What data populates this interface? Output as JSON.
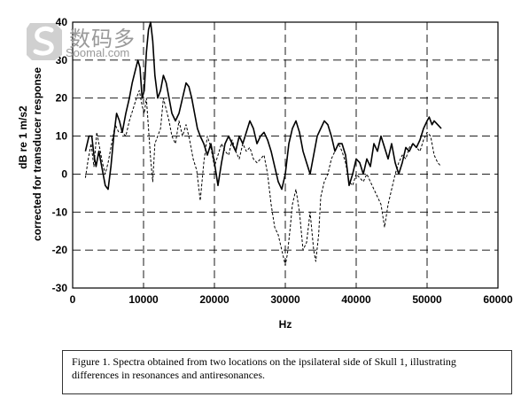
{
  "watermark": {
    "cn": "数码多",
    "en": "Soomal.com"
  },
  "caption": "Figure 1. Spectra obtained from two locations on the ipsilateral side of Skull 1, illustrating differences in resonances and antiresonances.",
  "chart_data": {
    "type": "line",
    "xlabel": "Hz",
    "ylabel_line1": "dB re 1 m/s2",
    "ylabel_line2": "corrected for transducer response",
    "xlim": [
      0,
      60000
    ],
    "ylim": [
      -30,
      40
    ],
    "xticks": [
      0,
      10000,
      20000,
      30000,
      40000,
      50000,
      60000
    ],
    "yticks": [
      -30,
      -20,
      -10,
      0,
      10,
      20,
      30,
      40
    ],
    "grid": "dashed",
    "series": [
      {
        "style": "solid",
        "points": [
          [
            1800,
            6
          ],
          [
            2300,
            10
          ],
          [
            2700,
            10
          ],
          [
            3000,
            5
          ],
          [
            3300,
            2
          ],
          [
            3700,
            6
          ],
          [
            4100,
            2
          ],
          [
            4600,
            -3
          ],
          [
            5000,
            -4
          ],
          [
            5400,
            2
          ],
          [
            5800,
            10
          ],
          [
            6200,
            16
          ],
          [
            6600,
            14
          ],
          [
            7000,
            11
          ],
          [
            7500,
            16
          ],
          [
            8000,
            20
          ],
          [
            8400,
            24
          ],
          [
            8800,
            27
          ],
          [
            9200,
            30
          ],
          [
            9500,
            28
          ],
          [
            9800,
            20
          ],
          [
            10100,
            22
          ],
          [
            10400,
            32
          ],
          [
            10700,
            38
          ],
          [
            11000,
            40
          ],
          [
            11300,
            35
          ],
          [
            11600,
            26
          ],
          [
            12000,
            20
          ],
          [
            12400,
            22
          ],
          [
            12800,
            26
          ],
          [
            13200,
            24
          ],
          [
            13600,
            20
          ],
          [
            14000,
            16
          ],
          [
            14500,
            14
          ],
          [
            15000,
            16
          ],
          [
            15500,
            20
          ],
          [
            16000,
            24
          ],
          [
            16400,
            23
          ],
          [
            16800,
            20
          ],
          [
            17200,
            16
          ],
          [
            17600,
            12
          ],
          [
            18000,
            10
          ],
          [
            18500,
            8
          ],
          [
            19000,
            5
          ],
          [
            19500,
            8
          ],
          [
            20000,
            3
          ],
          [
            20500,
            -3
          ],
          [
            21000,
            3
          ],
          [
            21500,
            8
          ],
          [
            22000,
            10
          ],
          [
            22500,
            8
          ],
          [
            23000,
            6
          ],
          [
            23500,
            10
          ],
          [
            24000,
            8
          ],
          [
            24500,
            11
          ],
          [
            25000,
            14
          ],
          [
            25500,
            12
          ],
          [
            26000,
            8
          ],
          [
            26500,
            10
          ],
          [
            27000,
            11
          ],
          [
            27500,
            9
          ],
          [
            28000,
            6
          ],
          [
            28500,
            2
          ],
          [
            29000,
            -2
          ],
          [
            29500,
            -4
          ],
          [
            30000,
            0
          ],
          [
            30500,
            8
          ],
          [
            31000,
            12
          ],
          [
            31500,
            14
          ],
          [
            32000,
            11
          ],
          [
            32500,
            6
          ],
          [
            33000,
            3
          ],
          [
            33500,
            0
          ],
          [
            34000,
            5
          ],
          [
            34500,
            10
          ],
          [
            35000,
            12
          ],
          [
            35500,
            14
          ],
          [
            36000,
            13
          ],
          [
            36500,
            10
          ],
          [
            37000,
            6
          ],
          [
            37500,
            8
          ],
          [
            38000,
            8
          ],
          [
            38500,
            5
          ],
          [
            39000,
            -3
          ],
          [
            39500,
            0
          ],
          [
            40000,
            4
          ],
          [
            40500,
            3
          ],
          [
            41000,
            0
          ],
          [
            41500,
            4
          ],
          [
            42000,
            2
          ],
          [
            42500,
            8
          ],
          [
            43000,
            6
          ],
          [
            43500,
            10
          ],
          [
            44000,
            7
          ],
          [
            44500,
            4
          ],
          [
            45000,
            8
          ],
          [
            45500,
            3
          ],
          [
            46000,
            0
          ],
          [
            46500,
            3
          ],
          [
            47000,
            7
          ],
          [
            47500,
            6
          ],
          [
            48000,
            8
          ],
          [
            48500,
            7
          ],
          [
            49000,
            9
          ],
          [
            49500,
            12
          ],
          [
            50000,
            14
          ],
          [
            50300,
            15
          ],
          [
            50700,
            13
          ],
          [
            51000,
            14
          ],
          [
            51500,
            13
          ],
          [
            52000,
            12
          ]
        ]
      },
      {
        "style": "dashed",
        "points": [
          [
            1800,
            -1
          ],
          [
            2200,
            4
          ],
          [
            2600,
            8
          ],
          [
            3000,
            2
          ],
          [
            3400,
            11
          ],
          [
            3800,
            7
          ],
          [
            4200,
            3
          ],
          [
            4600,
            0
          ],
          [
            5000,
            3
          ],
          [
            5500,
            8
          ],
          [
            6000,
            13
          ],
          [
            6500,
            11
          ],
          [
            7000,
            11
          ],
          [
            7500,
            10
          ],
          [
            8000,
            14
          ],
          [
            8500,
            17
          ],
          [
            9000,
            20
          ],
          [
            9400,
            22
          ],
          [
            9800,
            18
          ],
          [
            10100,
            16
          ],
          [
            10400,
            20
          ],
          [
            10700,
            12
          ],
          [
            11000,
            4
          ],
          [
            11300,
            -2
          ],
          [
            11600,
            8
          ],
          [
            12000,
            10
          ],
          [
            12400,
            12
          ],
          [
            12800,
            20
          ],
          [
            13200,
            17
          ],
          [
            13600,
            14
          ],
          [
            14000,
            10
          ],
          [
            14500,
            8
          ],
          [
            15000,
            14
          ],
          [
            15500,
            10
          ],
          [
            16000,
            13
          ],
          [
            16500,
            9
          ],
          [
            17000,
            4
          ],
          [
            17500,
            1
          ],
          [
            18000,
            -7
          ],
          [
            18500,
            3
          ],
          [
            19000,
            10
          ],
          [
            19500,
            7
          ],
          [
            20000,
            2
          ],
          [
            20500,
            5
          ],
          [
            21000,
            8
          ],
          [
            21500,
            6
          ],
          [
            22000,
            5
          ],
          [
            22500,
            9
          ],
          [
            23000,
            6
          ],
          [
            23500,
            4
          ],
          [
            24000,
            8
          ],
          [
            24500,
            6
          ],
          [
            25000,
            7
          ],
          [
            25500,
            4
          ],
          [
            26000,
            3
          ],
          [
            26500,
            4
          ],
          [
            27000,
            5
          ],
          [
            27500,
            0
          ],
          [
            28000,
            -8
          ],
          [
            28500,
            -14
          ],
          [
            29000,
            -16
          ],
          [
            29500,
            -20
          ],
          [
            30000,
            -24
          ],
          [
            30300,
            -21
          ],
          [
            30700,
            -14
          ],
          [
            31000,
            -8
          ],
          [
            31500,
            -4
          ],
          [
            32000,
            -10
          ],
          [
            32500,
            -20
          ],
          [
            33000,
            -18
          ],
          [
            33500,
            -10
          ],
          [
            34000,
            -20
          ],
          [
            34300,
            -23
          ],
          [
            34700,
            -16
          ],
          [
            35000,
            -6
          ],
          [
            35500,
            -2
          ],
          [
            36000,
            0
          ],
          [
            36500,
            4
          ],
          [
            37000,
            6
          ],
          [
            37500,
            8
          ],
          [
            38000,
            6
          ],
          [
            38500,
            3
          ],
          [
            39000,
            -2
          ],
          [
            39500,
            -3
          ],
          [
            40000,
            0
          ],
          [
            40500,
            -1
          ],
          [
            41000,
            -2
          ],
          [
            41500,
            0
          ],
          [
            42000,
            -2
          ],
          [
            42500,
            -4
          ],
          [
            43000,
            -6
          ],
          [
            43500,
            -8
          ],
          [
            44000,
            -14
          ],
          [
            44500,
            -8
          ],
          [
            45000,
            -4
          ],
          [
            45500,
            0
          ],
          [
            46000,
            3
          ],
          [
            46500,
            5
          ],
          [
            47000,
            4
          ],
          [
            47500,
            7
          ],
          [
            48000,
            8
          ],
          [
            48500,
            7
          ],
          [
            49000,
            6
          ],
          [
            49500,
            9
          ],
          [
            50000,
            11
          ],
          [
            50500,
            10
          ],
          [
            51000,
            5
          ],
          [
            51500,
            3
          ],
          [
            52000,
            2
          ]
        ]
      }
    ]
  }
}
